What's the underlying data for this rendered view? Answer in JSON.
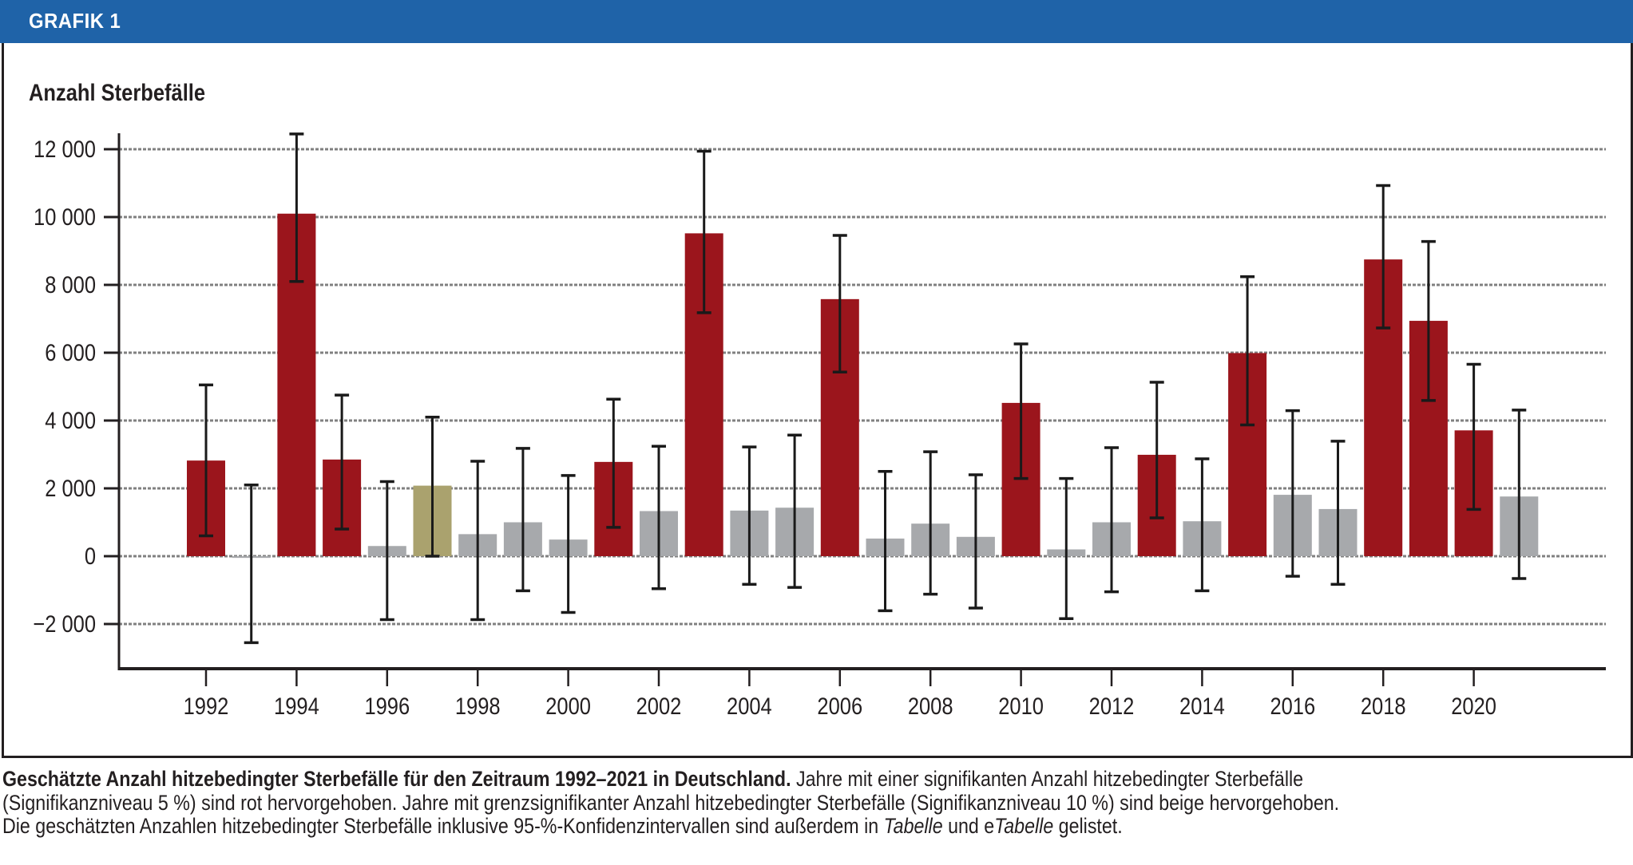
{
  "header": {
    "title": "GRAFIK 1"
  },
  "chart_data": {
    "type": "bar",
    "title": "GRAFIK 1",
    "ylabel": "Anzahl Sterbefälle",
    "xlabel": "",
    "ylim": [
      -2500,
      12500
    ],
    "yticks": [
      -2000,
      0,
      2000,
      4000,
      6000,
      8000,
      10000,
      12000
    ],
    "ytick_labels": [
      "−2 000",
      "0",
      "2 000",
      "4 000",
      "6 000",
      "8 000",
      "10 000",
      "12 000"
    ],
    "xtick_labels": [
      "1992",
      "1994",
      "1996",
      "1998",
      "2000",
      "2002",
      "2004",
      "2006",
      "2008",
      "2010",
      "2012",
      "2014",
      "2016",
      "2018",
      "2020"
    ],
    "grid": true,
    "error_bars": "95% confidence interval",
    "colors": {
      "significant_5": "#9B151C",
      "borderline_10": "#AAA26E",
      "not_significant": "#A7A9AC"
    },
    "categories": [
      "1992",
      "1993",
      "1994",
      "1995",
      "1996",
      "1997",
      "1998",
      "1999",
      "2000",
      "2001",
      "2002",
      "2003",
      "2004",
      "2005",
      "2006",
      "2007",
      "2008",
      "2009",
      "2010",
      "2011",
      "2012",
      "2013",
      "2014",
      "2015",
      "2016",
      "2017",
      "2018",
      "2019",
      "2020",
      "2021"
    ],
    "values": [
      2820,
      -50,
      10100,
      2850,
      300,
      2080,
      650,
      1000,
      490,
      2780,
      1330,
      9520,
      1345,
      1430,
      7580,
      520,
      960,
      570,
      4520,
      200,
      1000,
      2990,
      1030,
      5990,
      1810,
      1390,
      8750,
      6940,
      3710,
      1760
    ],
    "ci_lower": [
      600,
      -2550,
      8100,
      800,
      -1870,
      0,
      -1870,
      -1020,
      -1660,
      850,
      -960,
      7180,
      -830,
      -920,
      5430,
      -1610,
      -1120,
      -1530,
      2290,
      -1840,
      -1050,
      1130,
      -1020,
      3870,
      -590,
      -830,
      6730,
      4590,
      1380,
      -660
    ],
    "ci_upper": [
      5050,
      2100,
      12450,
      4750,
      2200,
      4100,
      2800,
      3180,
      2380,
      4630,
      3240,
      11940,
      3220,
      3570,
      9460,
      2500,
      3080,
      2400,
      6260,
      2290,
      3200,
      5130,
      2870,
      8240,
      4290,
      3390,
      10930,
      9280,
      5660,
      4310
    ],
    "significance": [
      "sig5",
      "none",
      "sig5",
      "sig5",
      "none",
      "sig10",
      "none",
      "none",
      "none",
      "sig5",
      "none",
      "sig5",
      "none",
      "none",
      "sig5",
      "none",
      "none",
      "none",
      "sig5",
      "none",
      "none",
      "sig5",
      "none",
      "sig5",
      "none",
      "none",
      "sig5",
      "sig5",
      "sig5",
      "none"
    ]
  },
  "caption": {
    "bold": "Geschätzte Anzahl hitzebedingter Sterbefälle für den Zeitraum 1992–2021 in Deutschland.",
    "line1_rest": " Jahre mit einer signifikanten Anzahl hitzebedingter Sterbefälle",
    "line2": "(Signifikanzniveau 5 %) sind rot hervorgehoben. Jahre mit grenzsignifikanter Anzahl hitzebedingter Sterbefälle (Signifikanzniveau 10 %) sind beige hervorgehoben.",
    "line3_a": "Die geschätzten Anzahlen hitzebedingter Sterbefälle inklusive 95-%-Konfidenzintervallen sind außerdem in ",
    "line3_i1": "Tabelle",
    "line3_b": " und e",
    "line3_i2": "Tabelle",
    "line3_c": " gelistet."
  }
}
